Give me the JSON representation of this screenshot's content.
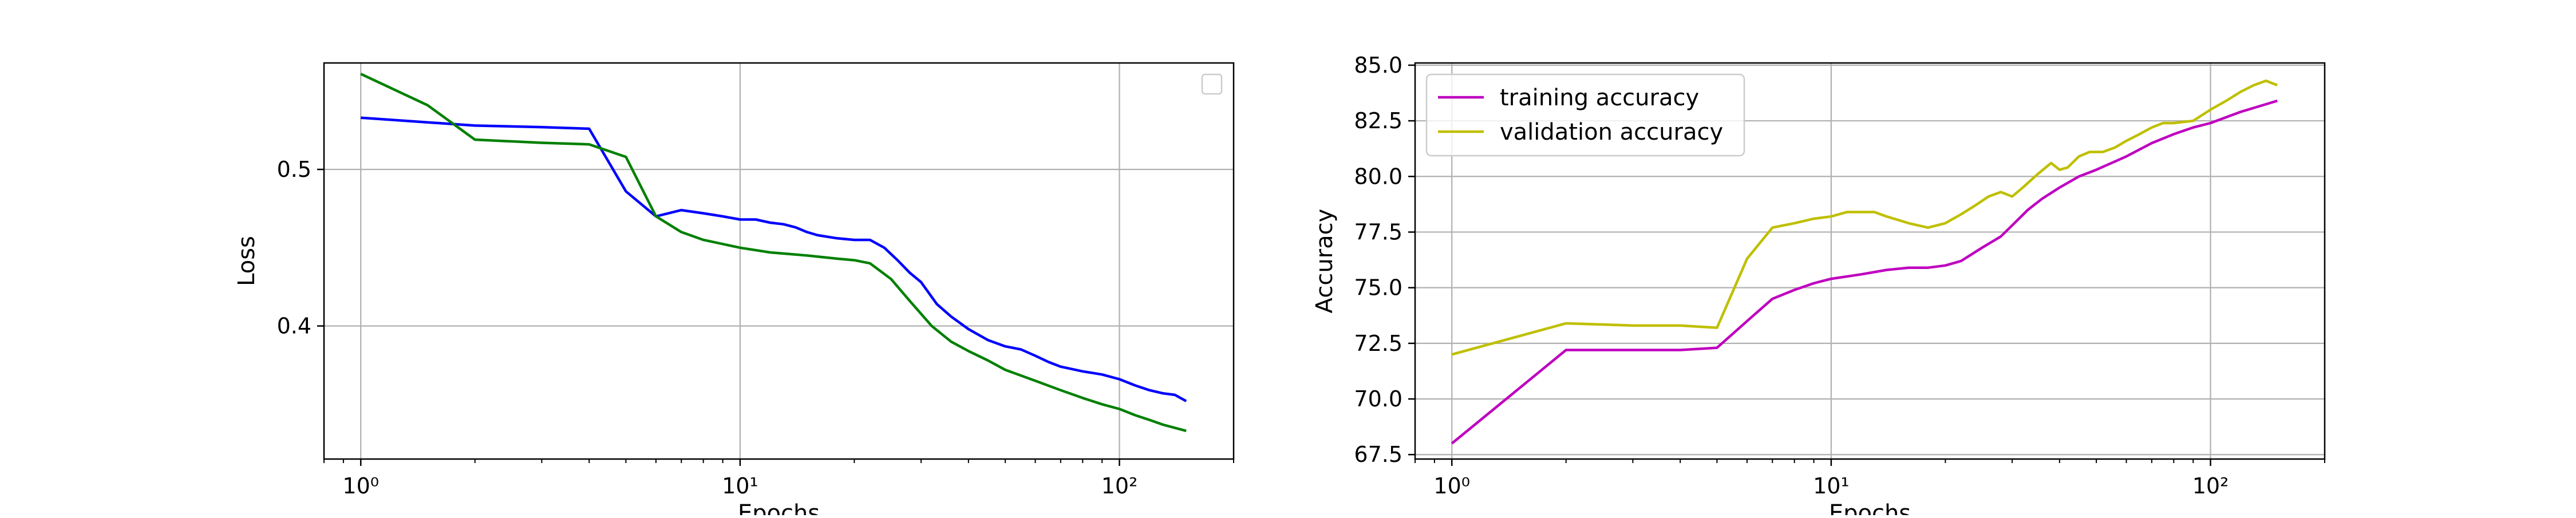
{
  "colors": {
    "blue": "#0000ff",
    "green": "#008000",
    "magenta": "#bf00bf",
    "olive": "#bfbf00",
    "grid": "#b0b0b0",
    "axis": "#000000",
    "legend_border": "#cccccc"
  },
  "chart_data": [
    {
      "type": "line",
      "xlabel": "Epochs",
      "ylabel": "Loss",
      "x_scale": "log",
      "xlim": [
        0.8,
        200
      ],
      "ylim": [
        0.315,
        0.568
      ],
      "x_ticks": [
        1,
        10,
        100
      ],
      "x_tick_labels": [
        "10⁰",
        "10¹",
        "10²"
      ],
      "y_ticks": [
        0.4,
        0.5
      ],
      "y_tick_labels": [
        "0.4",
        "0.5"
      ],
      "grid": true,
      "legend": {
        "placement": "upper right",
        "entries": []
      },
      "series": [
        {
          "color": "blue",
          "x": [
            1,
            2,
            3,
            4,
            5,
            6,
            7,
            8,
            9,
            10,
            11,
            12,
            13,
            14,
            15,
            16,
            18,
            20,
            22,
            24,
            26,
            28,
            30,
            33,
            36,
            40,
            45,
            50,
            55,
            60,
            65,
            70,
            80,
            90,
            100,
            110,
            120,
            130,
            140,
            150
          ],
          "y": [
            0.533,
            0.528,
            0.527,
            0.526,
            0.486,
            0.47,
            0.474,
            0.472,
            0.47,
            0.468,
            0.468,
            0.466,
            0.465,
            0.463,
            0.46,
            0.458,
            0.456,
            0.455,
            0.455,
            0.45,
            0.442,
            0.434,
            0.428,
            0.414,
            0.406,
            0.398,
            0.391,
            0.387,
            0.385,
            0.381,
            0.377,
            0.374,
            0.371,
            0.369,
            0.366,
            0.362,
            0.359,
            0.357,
            0.356,
            0.352
          ]
        },
        {
          "color": "green",
          "x": [
            1,
            1.5,
            2,
            3,
            4,
            5,
            6,
            7,
            8,
            10,
            12,
            15,
            18,
            20,
            22,
            25,
            28,
            32,
            36,
            40,
            45,
            50,
            60,
            70,
            80,
            90,
            100,
            110,
            120,
            130,
            150
          ],
          "y": [
            0.561,
            0.541,
            0.519,
            0.517,
            0.516,
            0.508,
            0.47,
            0.46,
            0.455,
            0.45,
            0.447,
            0.445,
            0.443,
            0.442,
            0.44,
            0.43,
            0.416,
            0.4,
            0.39,
            0.384,
            0.378,
            0.372,
            0.365,
            0.359,
            0.354,
            0.35,
            0.347,
            0.343,
            0.34,
            0.337,
            0.333
          ]
        }
      ]
    },
    {
      "type": "line",
      "xlabel": "Epochs",
      "ylabel": "Accuracy",
      "x_scale": "log",
      "xlim": [
        0.8,
        200
      ],
      "ylim": [
        67.3,
        85.1
      ],
      "x_ticks": [
        1,
        10,
        100
      ],
      "x_tick_labels": [
        "10⁰",
        "10¹",
        "10²"
      ],
      "y_ticks": [
        67.5,
        70.0,
        72.5,
        75.0,
        77.5,
        80.0,
        82.5,
        85.0
      ],
      "y_tick_labels": [
        "67.5",
        "70.0",
        "72.5",
        "75.0",
        "77.5",
        "80.0",
        "82.5",
        "85.0"
      ],
      "grid": true,
      "legend": {
        "placement": "upper left",
        "entries": [
          "training accuracy",
          "validation accuracy"
        ]
      },
      "series": [
        {
          "name": "training accuracy",
          "color": "magenta",
          "x": [
            1,
            2,
            3,
            4,
            5,
            6,
            7,
            8,
            9,
            10,
            12,
            14,
            16,
            18,
            20,
            22,
            25,
            28,
            30,
            33,
            36,
            40,
            45,
            50,
            60,
            70,
            80,
            90,
            100,
            120,
            150
          ],
          "y": [
            68.0,
            72.2,
            72.2,
            72.2,
            72.3,
            73.5,
            74.5,
            74.9,
            75.2,
            75.4,
            75.6,
            75.8,
            75.9,
            75.9,
            76.0,
            76.2,
            76.8,
            77.3,
            77.8,
            78.5,
            79.0,
            79.5,
            80.0,
            80.3,
            80.9,
            81.5,
            81.9,
            82.2,
            82.4,
            82.9,
            83.4
          ]
        },
        {
          "name": "validation accuracy",
          "color": "olive",
          "x": [
            1,
            2,
            3,
            4,
            5,
            6,
            7,
            8,
            9,
            10,
            11,
            12,
            13,
            14,
            16,
            18,
            20,
            22,
            24,
            26,
            28,
            30,
            32,
            35,
            38,
            40,
            42,
            45,
            48,
            52,
            56,
            60,
            65,
            70,
            75,
            80,
            90,
            100,
            110,
            120,
            130,
            140,
            150
          ],
          "y": [
            72.0,
            73.4,
            73.3,
            73.3,
            73.2,
            76.3,
            77.7,
            77.9,
            78.1,
            78.2,
            78.4,
            78.4,
            78.4,
            78.2,
            77.9,
            77.7,
            77.9,
            78.3,
            78.7,
            79.1,
            79.3,
            79.1,
            79.5,
            80.1,
            80.6,
            80.3,
            80.4,
            80.9,
            81.1,
            81.1,
            81.3,
            81.6,
            81.9,
            82.2,
            82.4,
            82.4,
            82.5,
            83.0,
            83.4,
            83.8,
            84.1,
            84.3,
            84.1
          ]
        }
      ]
    }
  ]
}
